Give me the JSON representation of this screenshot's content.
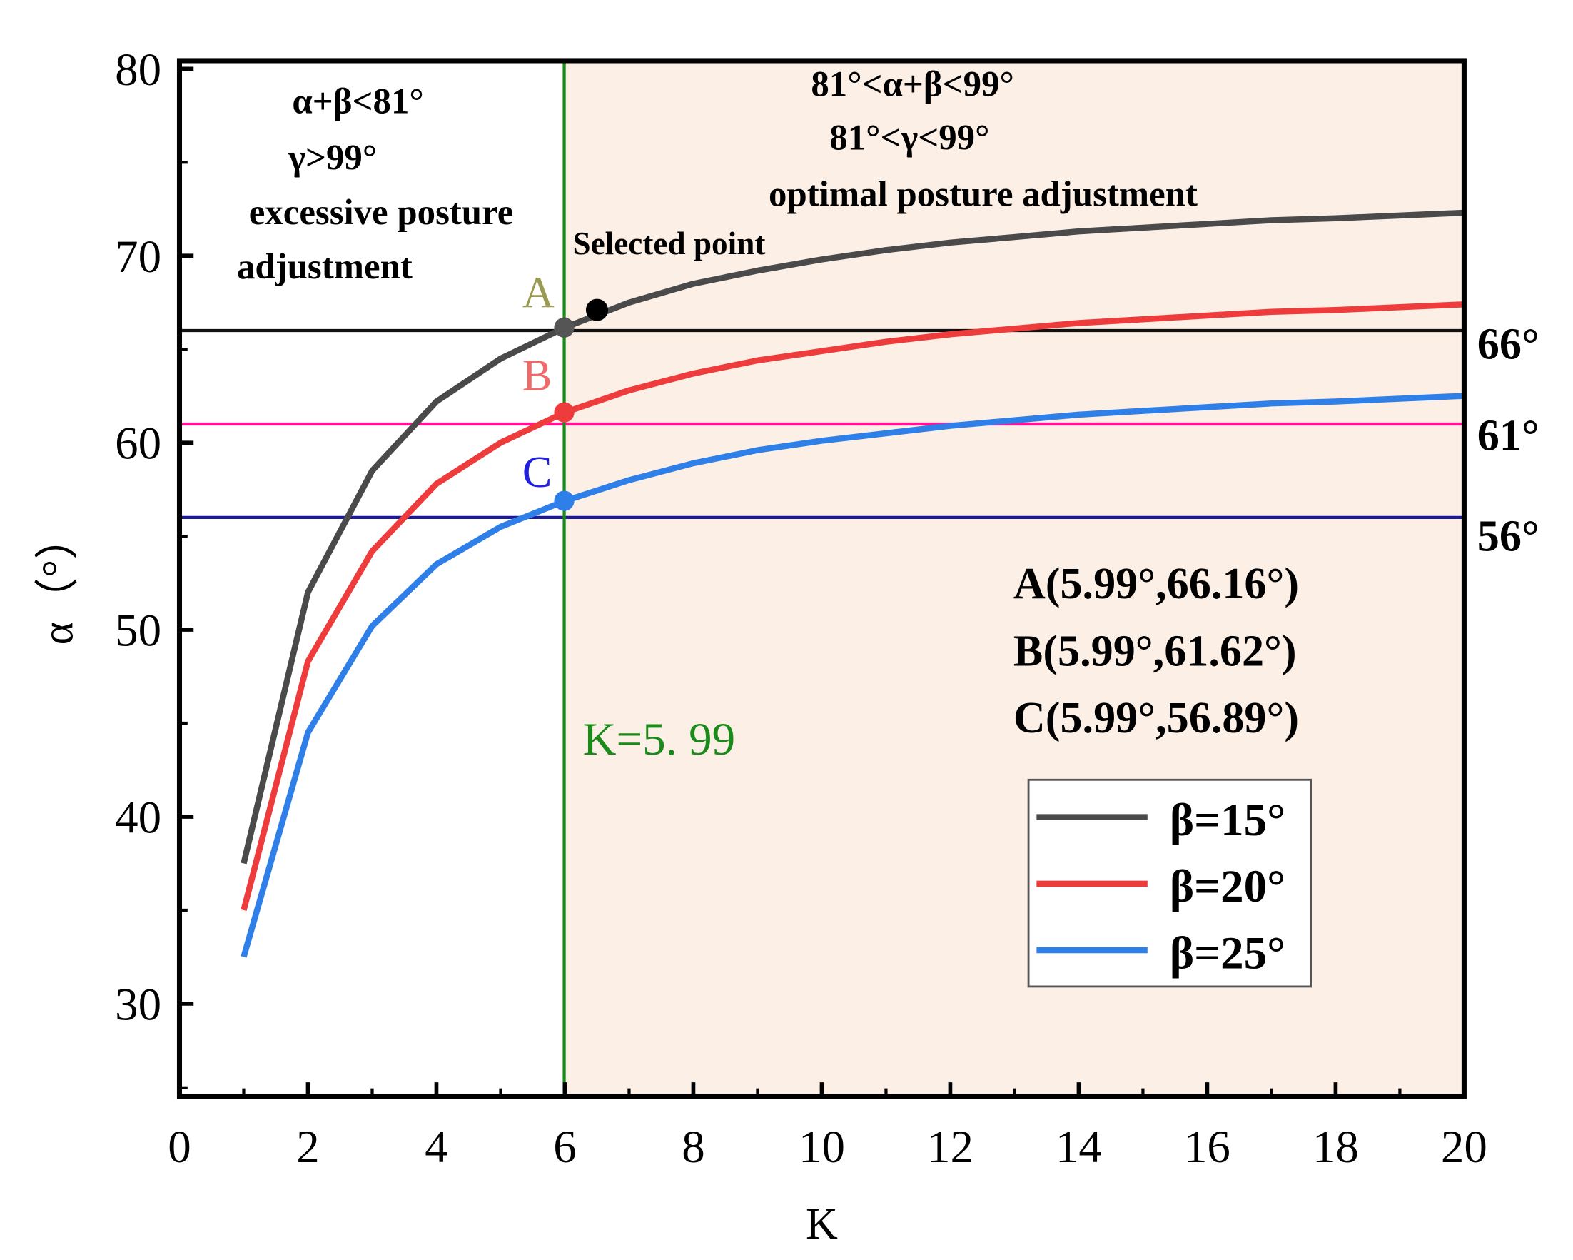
{
  "chart_data": {
    "type": "line",
    "xlabel": "K",
    "ylabel": "α（°）",
    "xlim": [
      0,
      20
    ],
    "ylim": [
      25,
      80.4
    ],
    "xticks": [
      0,
      2,
      4,
      6,
      8,
      10,
      12,
      14,
      16,
      18,
      20
    ],
    "yticks": [
      30,
      40,
      50,
      60,
      70,
      80
    ],
    "grid": false,
    "legend_position": "bottom-right",
    "series": [
      {
        "name": "β=15°",
        "color": "#4a4a4a",
        "x": [
          1,
          2,
          3,
          4,
          5,
          6,
          7,
          8,
          9,
          10,
          11,
          12,
          13,
          14,
          15,
          16,
          17,
          18,
          19,
          20
        ],
        "y": [
          37.5,
          52.0,
          58.5,
          62.2,
          64.5,
          66.16,
          67.5,
          68.5,
          69.2,
          69.8,
          70.3,
          70.7,
          71.0,
          71.3,
          71.5,
          71.7,
          71.9,
          72.0,
          72.15,
          72.3
        ]
      },
      {
        "name": "β=20°",
        "color": "#ee3b3b",
        "x": [
          1,
          2,
          3,
          4,
          5,
          6,
          7,
          8,
          9,
          10,
          11,
          12,
          13,
          14,
          15,
          16,
          17,
          18,
          19,
          20
        ],
        "y": [
          35.0,
          48.3,
          54.2,
          57.8,
          60.0,
          61.62,
          62.8,
          63.7,
          64.4,
          64.9,
          65.4,
          65.8,
          66.1,
          66.4,
          66.6,
          66.8,
          67.0,
          67.1,
          67.25,
          67.4
        ]
      },
      {
        "name": "β=25°",
        "color": "#2f7fe8",
        "x": [
          1,
          2,
          3,
          4,
          5,
          6,
          7,
          8,
          9,
          10,
          11,
          12,
          13,
          14,
          15,
          16,
          17,
          18,
          19,
          20
        ],
        "y": [
          32.5,
          44.5,
          50.2,
          53.5,
          55.5,
          56.89,
          58.0,
          58.9,
          59.6,
          60.1,
          60.5,
          60.9,
          61.2,
          61.5,
          61.7,
          61.9,
          62.1,
          62.2,
          62.35,
          62.5
        ]
      }
    ],
    "reference_lines": [
      {
        "value": 66,
        "label": "66°",
        "color": "#111111"
      },
      {
        "value": 61,
        "label": "61°",
        "color": "#ff1493"
      },
      {
        "value": 56,
        "label": "56°",
        "color": "#1a1a9a"
      }
    ],
    "vertical_line": {
      "value": 5.99,
      "label": "K=5. 99",
      "color": "#1a8a1a"
    },
    "points": [
      {
        "name": "A",
        "x": 5.99,
        "y": 66.16,
        "color": "#9a9a50",
        "marker": "#555555"
      },
      {
        "name": "B",
        "x": 5.99,
        "y": 61.62,
        "color": "#f06a6a",
        "marker": "#ee3b3b"
      },
      {
        "name": "C",
        "x": 5.99,
        "y": 56.89,
        "color": "#2020e0",
        "marker": "#2f7fe8"
      }
    ],
    "selected_point": {
      "label": "Selected point",
      "x": 6.5,
      "y": 67.1
    },
    "annotations": {
      "left_region": [
        "α+β<81°",
        "γ>99°",
        "excessive posture",
        "adjustment"
      ],
      "right_region": [
        "81°<α+β<99°",
        "81°<γ<99°",
        "optimal posture adjustment"
      ],
      "coordinates": [
        "A(5.99°,66.16°)",
        "B(5.99°,61.62°)",
        "C(5.99°,56.89°)"
      ]
    },
    "region_color": "#fcefe6"
  }
}
